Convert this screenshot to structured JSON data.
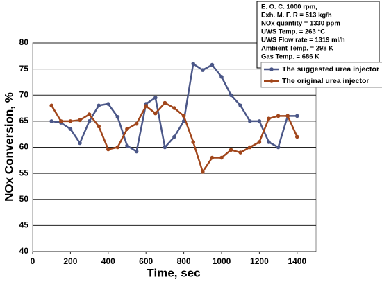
{
  "chart_data": {
    "type": "line",
    "xlabel": "Time, sec",
    "ylabel": "NOx Conversion, %",
    "annotations": [
      "E. O. C. 1000 rpm,",
      "Exh. M. F. R = 513 kg/h",
      "NOx quantity = 1330 ppm",
      "UWS Temp. = 263 °C",
      "UWS Flow rate = 1319 ml/h",
      "Ambient Temp. = 298 K",
      "Gas Temp. = 686 K"
    ],
    "x": [
      100,
      150,
      200,
      250,
      300,
      350,
      400,
      450,
      500,
      550,
      600,
      650,
      700,
      750,
      800,
      850,
      900,
      950,
      1000,
      1050,
      1100,
      1150,
      1200,
      1250,
      1300,
      1350,
      1400
    ],
    "series": [
      {
        "name": "The suggested urea injector",
        "color": "#4b5788",
        "values": [
          65,
          64.7,
          63.5,
          60.8,
          65,
          68,
          68.3,
          65.8,
          60.3,
          59.2,
          68.3,
          69.5,
          60,
          62,
          65,
          76,
          74.8,
          75.8,
          73.5,
          70,
          68,
          65,
          65,
          61,
          60,
          66,
          66
        ]
      },
      {
        "name": "The original urea injector",
        "color": "#a1461b",
        "values": [
          68,
          65,
          65,
          65.2,
          66.3,
          64,
          59.6,
          60,
          63.5,
          64.5,
          67.9,
          66.5,
          68.5,
          67.5,
          66,
          61,
          55.3,
          58,
          58,
          59.5,
          59,
          60,
          61,
          65.5,
          66,
          66,
          62
        ]
      }
    ],
    "xlim": [
      0,
      1500
    ],
    "xticks": [
      0,
      200,
      400,
      600,
      800,
      1000,
      1200,
      1400
    ],
    "ylim": [
      40,
      80
    ],
    "yticks": [
      40,
      45,
      50,
      55,
      60,
      65,
      70,
      75,
      80
    ],
    "grid": true
  }
}
